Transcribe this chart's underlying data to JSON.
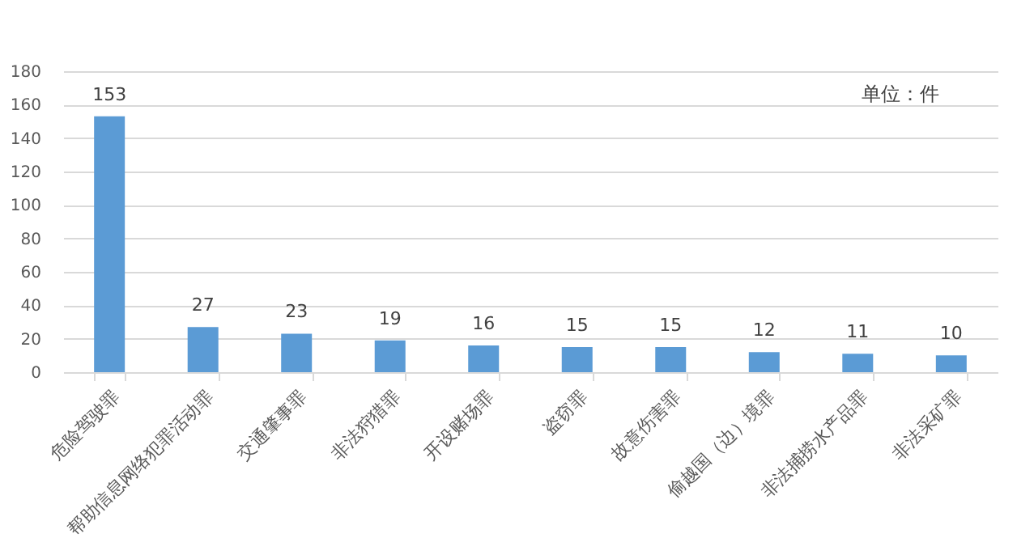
{
  "chart_data": {
    "type": "bar",
    "categories": [
      "危险驾驶罪",
      "帮助信息网络犯罪活动罪",
      "交通肇事罪",
      "非法狩猎罪",
      "开设赌场罪",
      "盗窃罪",
      "故意伤害罪",
      "偷越国（边）境罪",
      "非法捕捞水产品罪",
      "非法采矿罪"
    ],
    "values": [
      153,
      27,
      23,
      19,
      16,
      15,
      15,
      12,
      11,
      10
    ],
    "color": "#5b9bd5",
    "ylim": [
      0,
      180
    ],
    "yticks": [
      0,
      20,
      40,
      60,
      80,
      100,
      120,
      140,
      160,
      180
    ],
    "grid": "y",
    "data_labels": true,
    "annotations": [
      "单位：件"
    ]
  }
}
